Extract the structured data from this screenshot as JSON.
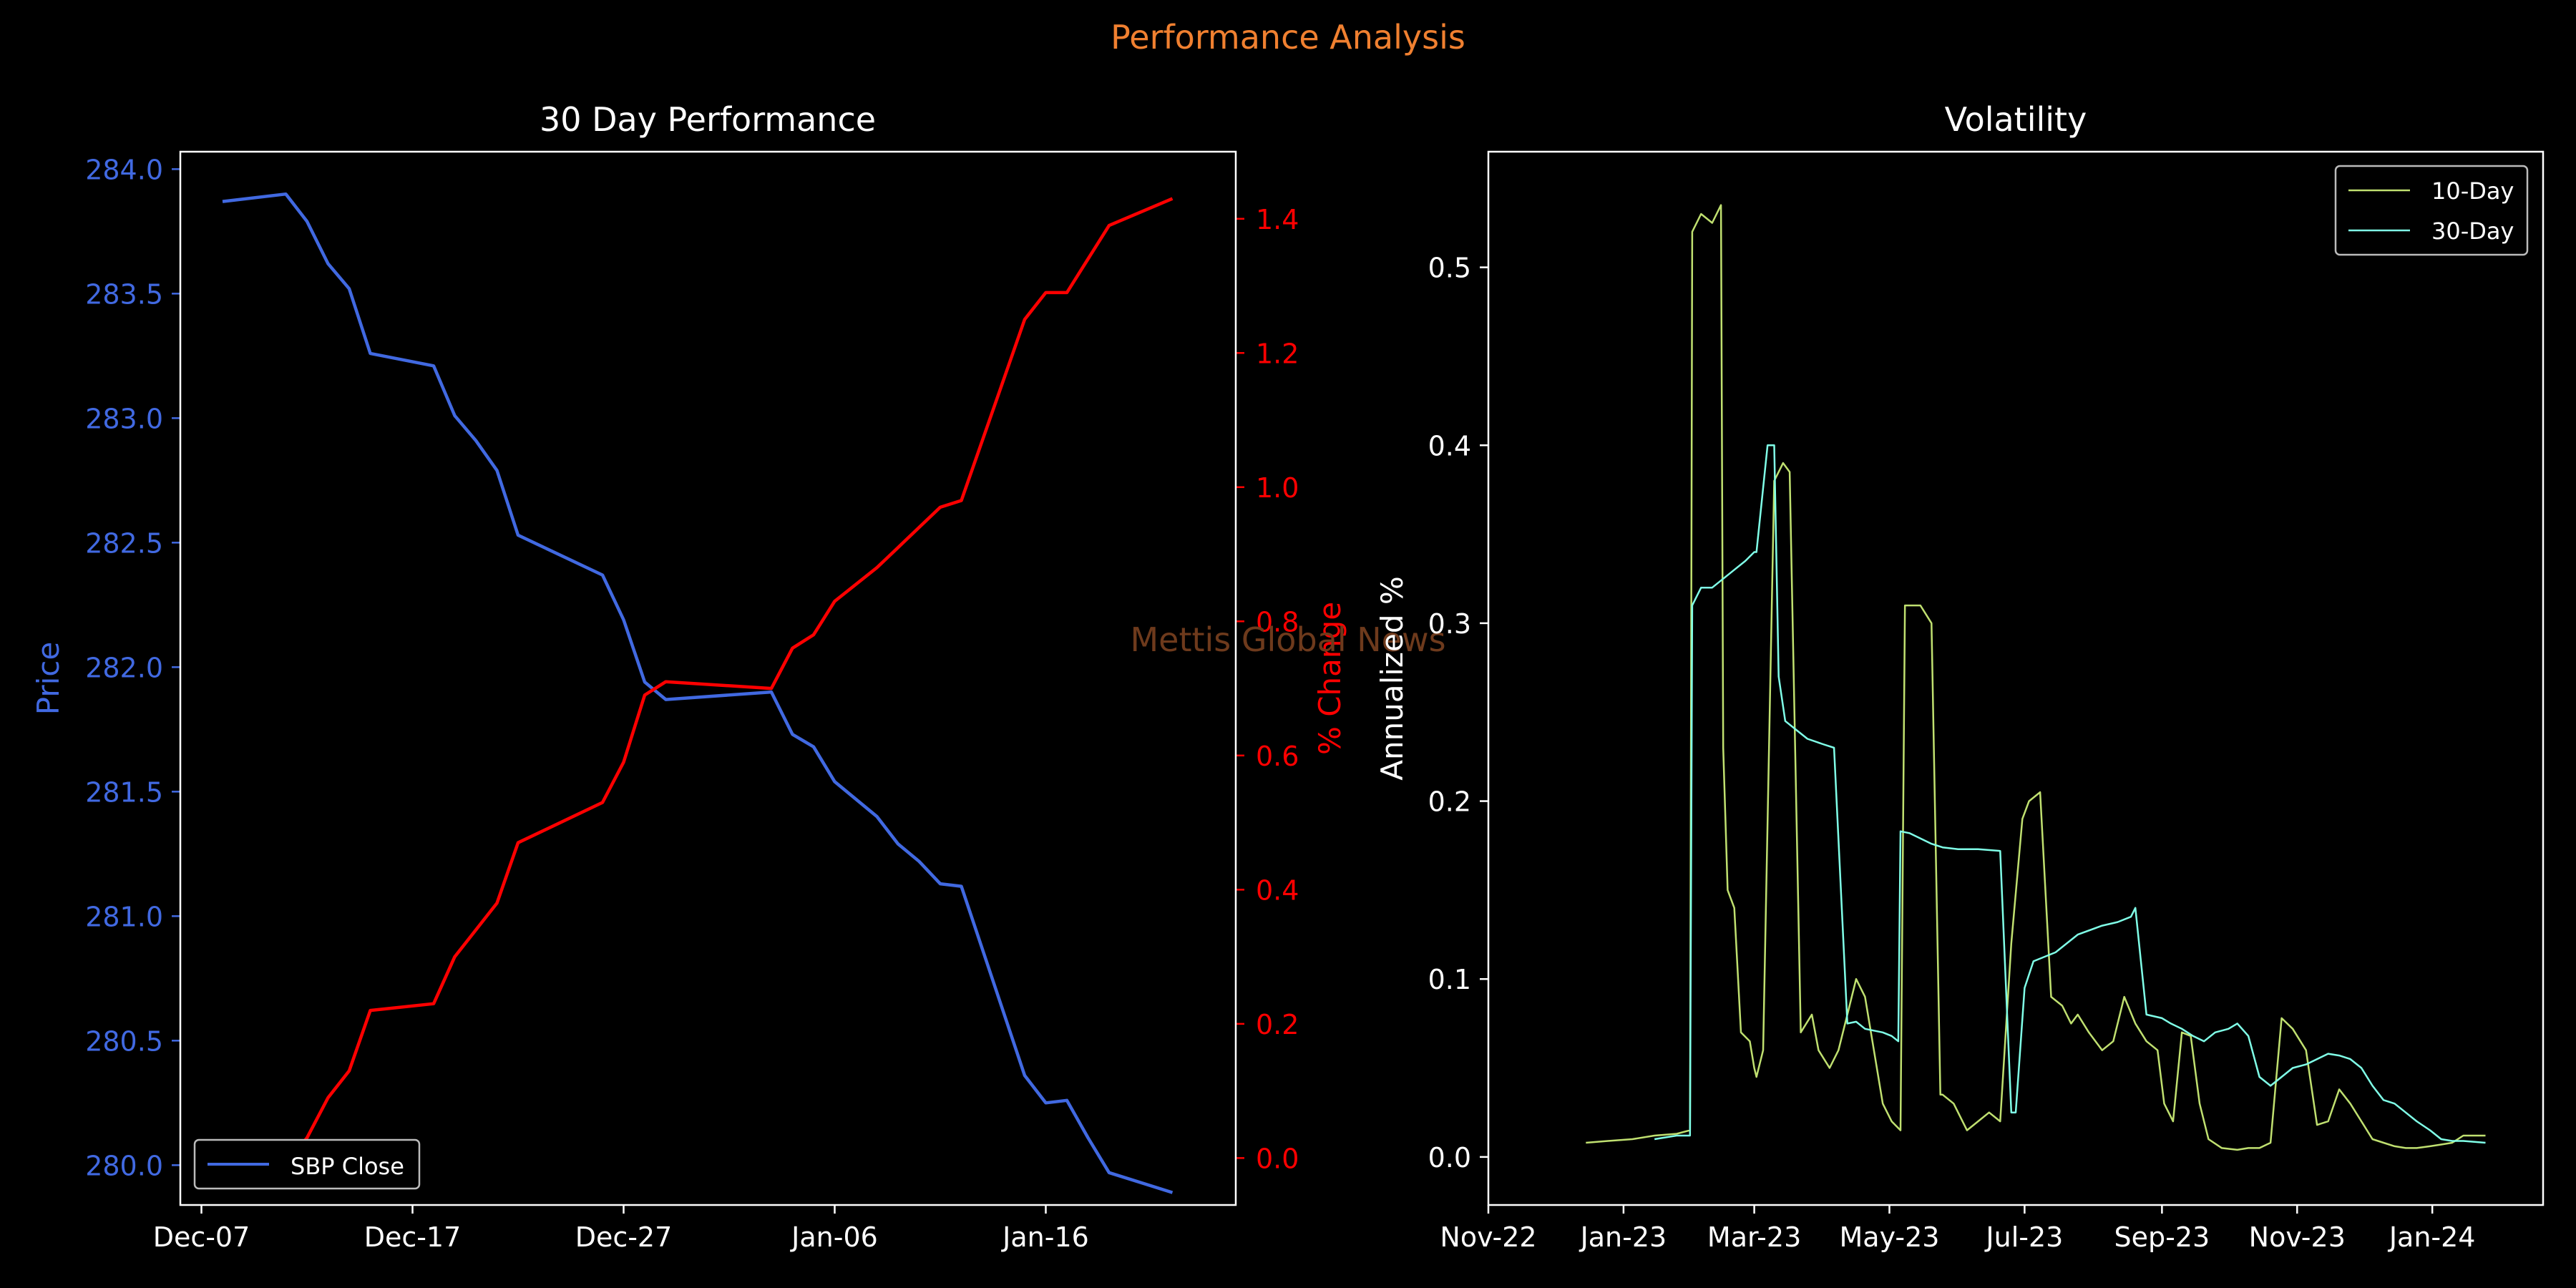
{
  "suptitle": "Performance Analysis",
  "watermark": "Mettis Global News",
  "colors": {
    "background": "#000000",
    "suptitle": "#f08030",
    "price": "#4169e1",
    "pct": "#ff0000",
    "watermark": "#6e3a1c",
    "vol10": "#c0e070",
    "vol30": "#80ffe8",
    "frame": "#ffffff"
  },
  "chart_data": [
    {
      "type": "line",
      "title": "30 Day Performance",
      "ylabel": "Price",
      "y2label": "% Change",
      "x_axis": {
        "type": "date",
        "range": [
          "2023-12-06",
          "2024-01-25"
        ],
        "ticks": [
          "2023-12-07",
          "2023-12-17",
          "2023-12-27",
          "2024-01-06",
          "2024-01-16"
        ],
        "tick_labels": [
          "Dec-07",
          "Dec-17",
          "Dec-27",
          "Jan-06",
          "Jan-16"
        ]
      },
      "ylim": [
        279.84,
        284.07
      ],
      "y_ticks": [
        280.0,
        280.5,
        281.0,
        281.5,
        282.0,
        282.5,
        283.0,
        283.5,
        284.0
      ],
      "y_tick_labels": [
        "280.0",
        "280.5",
        "281.0",
        "281.5",
        "282.0",
        "282.5",
        "283.0",
        "283.5",
        "284.0"
      ],
      "y2lim": [
        -0.07,
        1.5
      ],
      "y2_ticks": [
        0.0,
        0.2,
        0.4,
        0.6,
        0.8,
        1.0,
        1.2,
        1.4
      ],
      "y2_tick_labels": [
        "0.0",
        "0.2",
        "0.4",
        "0.6",
        "0.8",
        "1.0",
        "1.2",
        "1.4"
      ],
      "legend": {
        "placement": "lower left",
        "entries": [
          "SBP Close"
        ]
      },
      "series": [
        {
          "name": "SBP Close",
          "axis": "left",
          "x": [
            "2023-12-08",
            "2023-12-11",
            "2023-12-12",
            "2023-12-13",
            "2023-12-14",
            "2023-12-15",
            "2023-12-18",
            "2023-12-19",
            "2023-12-20",
            "2023-12-21",
            "2023-12-22",
            "2023-12-26",
            "2023-12-27",
            "2023-12-28",
            "2023-12-29",
            "2024-01-03",
            "2024-01-04",
            "2024-01-05",
            "2024-01-06",
            "2024-01-08",
            "2024-01-09",
            "2024-01-10",
            "2024-01-11",
            "2024-01-12",
            "2024-01-15",
            "2024-01-16",
            "2024-01-17",
            "2024-01-18",
            "2024-01-19",
            "2024-01-22"
          ],
          "values": [
            283.87,
            283.9,
            283.79,
            283.62,
            283.52,
            283.26,
            283.21,
            283.01,
            282.91,
            282.79,
            282.53,
            282.37,
            282.19,
            281.94,
            281.87,
            281.9,
            281.73,
            281.68,
            281.54,
            281.4,
            281.29,
            281.22,
            281.13,
            281.12,
            280.36,
            280.25,
            280.26,
            280.11,
            279.97,
            279.89
          ]
        },
        {
          "name": "% Change",
          "axis": "right",
          "x": [
            "2023-12-08",
            "2023-12-11",
            "2023-12-12",
            "2023-12-13",
            "2023-12-14",
            "2023-12-15",
            "2023-12-18",
            "2023-12-19",
            "2023-12-20",
            "2023-12-21",
            "2023-12-22",
            "2023-12-26",
            "2023-12-27",
            "2023-12-28",
            "2023-12-29",
            "2024-01-03",
            "2024-01-04",
            "2024-01-05",
            "2024-01-06",
            "2024-01-08",
            "2024-01-09",
            "2024-01-10",
            "2024-01-11",
            "2024-01-12",
            "2024-01-15",
            "2024-01-16",
            "2024-01-17",
            "2024-01-18",
            "2024-01-19",
            "2024-01-22"
          ],
          "values": [
            0.0,
            -0.01,
            0.03,
            0.09,
            0.13,
            0.22,
            0.23,
            0.3,
            0.34,
            0.38,
            0.47,
            0.53,
            0.59,
            0.69,
            0.71,
            0.7,
            0.76,
            0.78,
            0.83,
            0.88,
            0.91,
            0.94,
            0.97,
            0.98,
            1.25,
            1.29,
            1.29,
            1.34,
            1.39,
            1.43
          ]
        }
      ]
    },
    {
      "type": "line",
      "title": "Volatility",
      "ylabel": "Annualized %",
      "x_axis": {
        "type": "date",
        "range": [
          "2022-11-01",
          "2024-02-20"
        ],
        "ticks": [
          "2022-11-01",
          "2023-01-01",
          "2023-03-01",
          "2023-05-01",
          "2023-07-01",
          "2023-09-01",
          "2023-11-01",
          "2024-01-01"
        ],
        "tick_labels": [
          "Nov-22",
          "Jan-23",
          "Mar-23",
          "May-23",
          "Jul-23",
          "Sep-23",
          "Nov-23",
          "Jan-24"
        ]
      },
      "ylim": [
        -0.027,
        0.565
      ],
      "y_ticks": [
        0.0,
        0.1,
        0.2,
        0.3,
        0.4,
        0.5
      ],
      "y_tick_labels": [
        "0.0",
        "0.1",
        "0.2",
        "0.3",
        "0.4",
        "0.5"
      ],
      "legend": {
        "placement": "upper right",
        "entries": [
          "10-Day",
          "30-Day"
        ]
      },
      "series": [
        {
          "name": "10-Day",
          "x": [
            "2022-12-15",
            "2022-12-25",
            "2023-01-05",
            "2023-01-15",
            "2023-01-25",
            "2023-01-31",
            "2023-02-01",
            "2023-02-05",
            "2023-02-10",
            "2023-02-14",
            "2023-02-15",
            "2023-02-17",
            "2023-02-20",
            "2023-02-23",
            "2023-02-27",
            "2023-03-01",
            "2023-03-02",
            "2023-03-05",
            "2023-03-10",
            "2023-03-14",
            "2023-03-17",
            "2023-03-22",
            "2023-03-27",
            "2023-03-30",
            "2023-04-04",
            "2023-04-08",
            "2023-04-12",
            "2023-04-16",
            "2023-04-20",
            "2023-04-24",
            "2023-04-28",
            "2023-05-02",
            "2023-05-06",
            "2023-05-08",
            "2023-05-15",
            "2023-05-20",
            "2023-05-24",
            "2023-05-25",
            "2023-05-30",
            "2023-06-05",
            "2023-06-10",
            "2023-06-15",
            "2023-06-20",
            "2023-06-25",
            "2023-06-30",
            "2023-07-03",
            "2023-07-08",
            "2023-07-13",
            "2023-07-18",
            "2023-07-22",
            "2023-07-25",
            "2023-07-30",
            "2023-08-05",
            "2023-08-10",
            "2023-08-15",
            "2023-08-20",
            "2023-08-25",
            "2023-08-30",
            "2023-09-02",
            "2023-09-06",
            "2023-09-10",
            "2023-09-14",
            "2023-09-18",
            "2023-09-22",
            "2023-09-28",
            "2023-10-05",
            "2023-10-10",
            "2023-10-15",
            "2023-10-20",
            "2023-10-25",
            "2023-10-30",
            "2023-11-05",
            "2023-11-10",
            "2023-11-15",
            "2023-11-20",
            "2023-11-25",
            "2023-11-30",
            "2023-12-05",
            "2023-12-10",
            "2023-12-15",
            "2023-12-20",
            "2023-12-25",
            "2023-12-31",
            "2024-01-05",
            "2024-01-10",
            "2024-01-15",
            "2024-01-25"
          ],
          "values": [
            0.008,
            0.009,
            0.01,
            0.012,
            0.013,
            0.015,
            0.52,
            0.53,
            0.525,
            0.535,
            0.23,
            0.15,
            0.14,
            0.07,
            0.065,
            0.05,
            0.045,
            0.06,
            0.38,
            0.39,
            0.385,
            0.07,
            0.08,
            0.06,
            0.05,
            0.06,
            0.08,
            0.1,
            0.09,
            0.06,
            0.03,
            0.02,
            0.015,
            0.31,
            0.31,
            0.3,
            0.035,
            0.035,
            0.03,
            0.015,
            0.02,
            0.025,
            0.02,
            0.12,
            0.19,
            0.2,
            0.205,
            0.09,
            0.085,
            0.075,
            0.08,
            0.07,
            0.06,
            0.065,
            0.09,
            0.075,
            0.065,
            0.06,
            0.03,
            0.02,
            0.07,
            0.068,
            0.03,
            0.01,
            0.005,
            0.004,
            0.005,
            0.005,
            0.008,
            0.078,
            0.072,
            0.06,
            0.018,
            0.02,
            0.038,
            0.03,
            0.02,
            0.01,
            0.008,
            0.006,
            0.005,
            0.005,
            0.006,
            0.007,
            0.008,
            0.012,
            0.012
          ]
        },
        {
          "name": "30-Day",
          "x": [
            "2023-01-15",
            "2023-01-25",
            "2023-01-31",
            "2023-02-01",
            "2023-02-05",
            "2023-02-10",
            "2023-02-15",
            "2023-02-20",
            "2023-02-25",
            "2023-03-01",
            "2023-03-02",
            "2023-03-07",
            "2023-03-10",
            "2023-03-12",
            "2023-03-15",
            "2023-03-20",
            "2023-03-25",
            "2023-04-01",
            "2023-04-06",
            "2023-04-12",
            "2023-04-16",
            "2023-04-20",
            "2023-04-28",
            "2023-05-02",
            "2023-05-05",
            "2023-05-06",
            "2023-05-10",
            "2023-05-20",
            "2023-05-25",
            "2023-06-01",
            "2023-06-10",
            "2023-06-20",
            "2023-06-25",
            "2023-06-27",
            "2023-07-01",
            "2023-07-05",
            "2023-07-15",
            "2023-07-25",
            "2023-08-05",
            "2023-08-12",
            "2023-08-18",
            "2023-08-20",
            "2023-08-25",
            "2023-09-01",
            "2023-09-05",
            "2023-09-10",
            "2023-09-15",
            "2023-09-20",
            "2023-09-25",
            "2023-10-01",
            "2023-10-05",
            "2023-10-10",
            "2023-10-15",
            "2023-10-20",
            "2023-10-25",
            "2023-10-30",
            "2023-11-05",
            "2023-11-10",
            "2023-11-15",
            "2023-11-20",
            "2023-11-25",
            "2023-11-30",
            "2023-12-05",
            "2023-12-10",
            "2023-12-15",
            "2023-12-20",
            "2023-12-25",
            "2023-12-31",
            "2024-01-05",
            "2024-01-10",
            "2024-01-15",
            "2024-01-25"
          ],
          "values": [
            0.01,
            0.012,
            0.012,
            0.31,
            0.32,
            0.32,
            0.325,
            0.33,
            0.335,
            0.34,
            0.34,
            0.4,
            0.4,
            0.27,
            0.245,
            0.24,
            0.235,
            0.232,
            0.23,
            0.075,
            0.076,
            0.072,
            0.07,
            0.068,
            0.065,
            0.183,
            0.182,
            0.176,
            0.174,
            0.173,
            0.173,
            0.172,
            0.025,
            0.025,
            0.095,
            0.11,
            0.115,
            0.125,
            0.13,
            0.132,
            0.135,
            0.14,
            0.08,
            0.078,
            0.075,
            0.072,
            0.068,
            0.065,
            0.07,
            0.072,
            0.075,
            0.068,
            0.045,
            0.04,
            0.045,
            0.05,
            0.052,
            0.055,
            0.058,
            0.057,
            0.055,
            0.05,
            0.04,
            0.032,
            0.03,
            0.025,
            0.02,
            0.015,
            0.01,
            0.009,
            0.009,
            0.008
          ]
        }
      ]
    }
  ]
}
